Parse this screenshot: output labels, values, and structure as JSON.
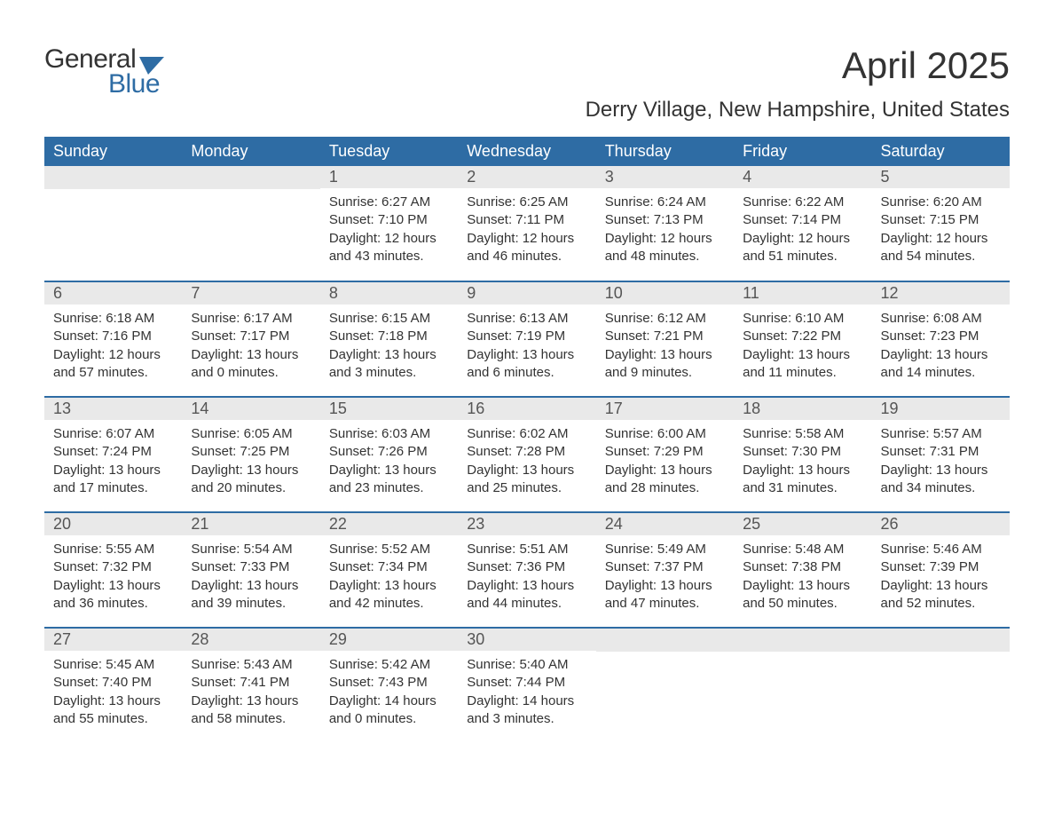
{
  "logo": {
    "text1": "General",
    "text2": "Blue",
    "icon_color": "#2e6ca4",
    "text1_color": "#333333",
    "text2_color": "#2e6ca4"
  },
  "title": "April 2025",
  "location": "Derry Village, New Hampshire, United States",
  "colors": {
    "header_bg": "#2e6ca4",
    "header_text": "#ffffff",
    "daynum_bg": "#e9e9e9",
    "daynum_text": "#555555",
    "body_text": "#333333",
    "border": "#2e6ca4",
    "page_bg": "#ffffff"
  },
  "fonts": {
    "title_size": 42,
    "location_size": 24,
    "weekday_size": 18,
    "daynum_size": 18,
    "body_size": 15
  },
  "weekdays": [
    "Sunday",
    "Monday",
    "Tuesday",
    "Wednesday",
    "Thursday",
    "Friday",
    "Saturday"
  ],
  "weeks": [
    [
      {
        "blank": true
      },
      {
        "blank": true
      },
      {
        "day": "1",
        "sunrise": "6:27 AM",
        "sunset": "7:10 PM",
        "daylight": "12 hours and 43 minutes."
      },
      {
        "day": "2",
        "sunrise": "6:25 AM",
        "sunset": "7:11 PM",
        "daylight": "12 hours and 46 minutes."
      },
      {
        "day": "3",
        "sunrise": "6:24 AM",
        "sunset": "7:13 PM",
        "daylight": "12 hours and 48 minutes."
      },
      {
        "day": "4",
        "sunrise": "6:22 AM",
        "sunset": "7:14 PM",
        "daylight": "12 hours and 51 minutes."
      },
      {
        "day": "5",
        "sunrise": "6:20 AM",
        "sunset": "7:15 PM",
        "daylight": "12 hours and 54 minutes."
      }
    ],
    [
      {
        "day": "6",
        "sunrise": "6:18 AM",
        "sunset": "7:16 PM",
        "daylight": "12 hours and 57 minutes."
      },
      {
        "day": "7",
        "sunrise": "6:17 AM",
        "sunset": "7:17 PM",
        "daylight": "13 hours and 0 minutes."
      },
      {
        "day": "8",
        "sunrise": "6:15 AM",
        "sunset": "7:18 PM",
        "daylight": "13 hours and 3 minutes."
      },
      {
        "day": "9",
        "sunrise": "6:13 AM",
        "sunset": "7:19 PM",
        "daylight": "13 hours and 6 minutes."
      },
      {
        "day": "10",
        "sunrise": "6:12 AM",
        "sunset": "7:21 PM",
        "daylight": "13 hours and 9 minutes."
      },
      {
        "day": "11",
        "sunrise": "6:10 AM",
        "sunset": "7:22 PM",
        "daylight": "13 hours and 11 minutes."
      },
      {
        "day": "12",
        "sunrise": "6:08 AM",
        "sunset": "7:23 PM",
        "daylight": "13 hours and 14 minutes."
      }
    ],
    [
      {
        "day": "13",
        "sunrise": "6:07 AM",
        "sunset": "7:24 PM",
        "daylight": "13 hours and 17 minutes."
      },
      {
        "day": "14",
        "sunrise": "6:05 AM",
        "sunset": "7:25 PM",
        "daylight": "13 hours and 20 minutes."
      },
      {
        "day": "15",
        "sunrise": "6:03 AM",
        "sunset": "7:26 PM",
        "daylight": "13 hours and 23 minutes."
      },
      {
        "day": "16",
        "sunrise": "6:02 AM",
        "sunset": "7:28 PM",
        "daylight": "13 hours and 25 minutes."
      },
      {
        "day": "17",
        "sunrise": "6:00 AM",
        "sunset": "7:29 PM",
        "daylight": "13 hours and 28 minutes."
      },
      {
        "day": "18",
        "sunrise": "5:58 AM",
        "sunset": "7:30 PM",
        "daylight": "13 hours and 31 minutes."
      },
      {
        "day": "19",
        "sunrise": "5:57 AM",
        "sunset": "7:31 PM",
        "daylight": "13 hours and 34 minutes."
      }
    ],
    [
      {
        "day": "20",
        "sunrise": "5:55 AM",
        "sunset": "7:32 PM",
        "daylight": "13 hours and 36 minutes."
      },
      {
        "day": "21",
        "sunrise": "5:54 AM",
        "sunset": "7:33 PM",
        "daylight": "13 hours and 39 minutes."
      },
      {
        "day": "22",
        "sunrise": "5:52 AM",
        "sunset": "7:34 PM",
        "daylight": "13 hours and 42 minutes."
      },
      {
        "day": "23",
        "sunrise": "5:51 AM",
        "sunset": "7:36 PM",
        "daylight": "13 hours and 44 minutes."
      },
      {
        "day": "24",
        "sunrise": "5:49 AM",
        "sunset": "7:37 PM",
        "daylight": "13 hours and 47 minutes."
      },
      {
        "day": "25",
        "sunrise": "5:48 AM",
        "sunset": "7:38 PM",
        "daylight": "13 hours and 50 minutes."
      },
      {
        "day": "26",
        "sunrise": "5:46 AM",
        "sunset": "7:39 PM",
        "daylight": "13 hours and 52 minutes."
      }
    ],
    [
      {
        "day": "27",
        "sunrise": "5:45 AM",
        "sunset": "7:40 PM",
        "daylight": "13 hours and 55 minutes."
      },
      {
        "day": "28",
        "sunrise": "5:43 AM",
        "sunset": "7:41 PM",
        "daylight": "13 hours and 58 minutes."
      },
      {
        "day": "29",
        "sunrise": "5:42 AM",
        "sunset": "7:43 PM",
        "daylight": "14 hours and 0 minutes."
      },
      {
        "day": "30",
        "sunrise": "5:40 AM",
        "sunset": "7:44 PM",
        "daylight": "14 hours and 3 minutes."
      },
      {
        "blank": true
      },
      {
        "blank": true
      },
      {
        "blank": true
      }
    ]
  ],
  "labels": {
    "sunrise": "Sunrise: ",
    "sunset": "Sunset: ",
    "daylight": "Daylight: "
  }
}
